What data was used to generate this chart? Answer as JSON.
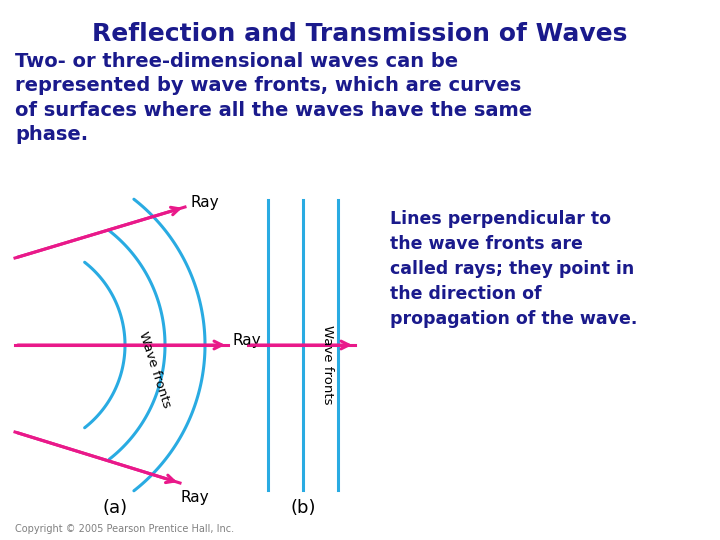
{
  "title": "Reflection and Transmission of Waves",
  "title_color": "#1a1a8c",
  "title_fontsize": 18,
  "body_text": "Two- or three-dimensional waves can be\nrepresented by wave fronts, which are curves\nof surfaces where all the waves have the same\nphase.",
  "body_color": "#1a1a8c",
  "body_fontsize": 14,
  "annotation_text": "Lines perpendicular to\nthe wave fronts are\ncalled rays; they point in\nthe direction of\npropagation of the wave.",
  "annotation_color": "#1a1a8c",
  "annotation_fontsize": 12.5,
  "label_a": "(a)",
  "label_b": "(b)",
  "label_ray": "Ray",
  "label_wavefronts": "Wave fronts",
  "copyright": "Copyright © 2005 Pearson Prentice Hall, Inc.",
  "cyan_color": "#29abe2",
  "magenta_color": "#e9198a",
  "dark_blue": "#1a1a8c",
  "background": "#ffffff"
}
